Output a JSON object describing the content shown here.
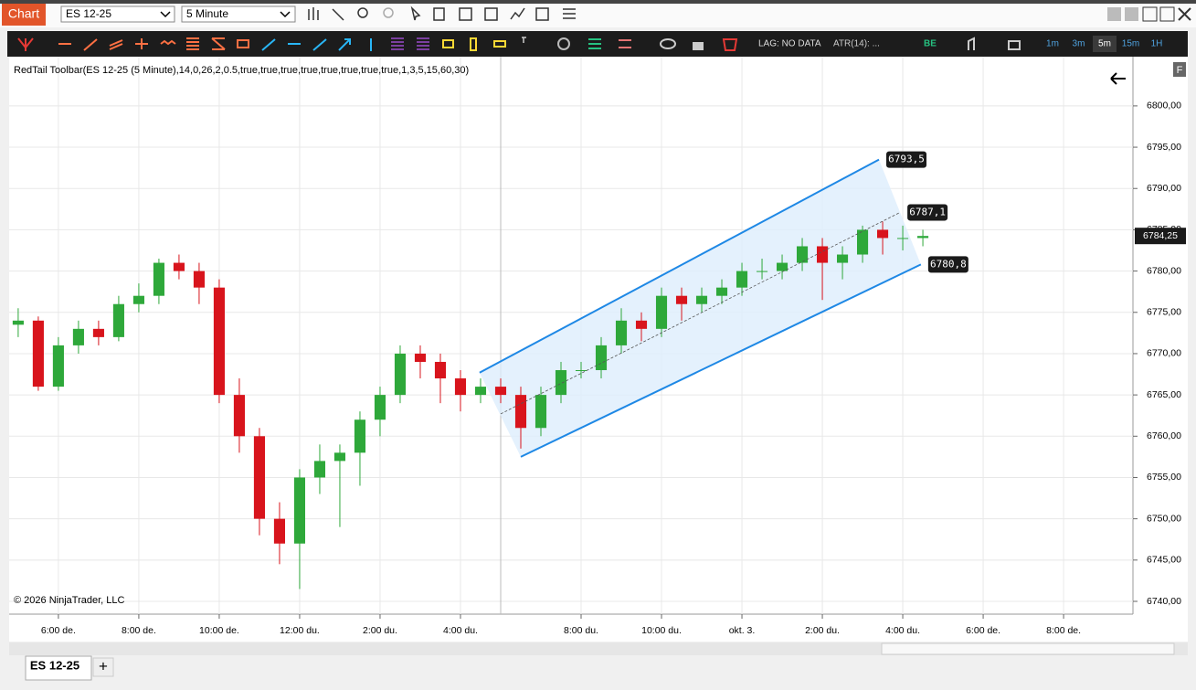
{
  "ui": {
    "window_tab": "Chart",
    "instrument": "ES 12-25",
    "interval": "5 Minute",
    "lag": "LAG: NO DATA",
    "atr": "ATR(14): ...",
    "be": "BE",
    "timeframes": [
      "1m",
      "3m",
      "5m",
      "15m",
      "1H"
    ],
    "indicator": "RedTail Toolbar(ES 12-25 (5 Minute),14,0,26,2,0.5,true,true,true,true,true,true,true,true,1,3,5,15,60,30)",
    "copyright": "© 2026 NinjaTrader, LLC",
    "f_button": "F",
    "bottom_tab": "ES 12-25",
    "add_tab": "+"
  },
  "chart_data": {
    "type": "candlestick",
    "up_color": "#2ea83a",
    "down_color": "#d8141c",
    "grid": true,
    "xlim": [
      -14.7,
      320.7
    ],
    "xticks": [
      {
        "value": 0,
        "label": "6:00 de."
      },
      {
        "value": 24,
        "label": "8:00 de."
      },
      {
        "value": 48,
        "label": "10:00 de."
      },
      {
        "value": 72,
        "label": "12:00 du."
      },
      {
        "value": 96,
        "label": "2:00 du."
      },
      {
        "value": 120,
        "label": "4:00 du."
      },
      {
        "value": 156,
        "label": "8:00 du."
      },
      {
        "value": 180,
        "label": "10:00 du."
      },
      {
        "value": 204,
        "label": "okt. 3."
      },
      {
        "value": 228,
        "label": "2:00 du."
      },
      {
        "value": 252,
        "label": "4:00 du."
      },
      {
        "value": 276,
        "label": "6:00 de."
      },
      {
        "value": 300,
        "label": "8:00 de."
      }
    ],
    "ylim": [
      6738.45,
      6805.3
    ],
    "yticks": [
      {
        "value": 6740,
        "label": "6740,00"
      },
      {
        "value": 6745,
        "label": "6745,00"
      },
      {
        "value": 6750,
        "label": "6750,00"
      },
      {
        "value": 6755,
        "label": "6755,00"
      },
      {
        "value": 6760,
        "label": "6760,00"
      },
      {
        "value": 6765,
        "label": "6765,00"
      },
      {
        "value": 6770,
        "label": "6770,00"
      },
      {
        "value": 6775,
        "label": "6775,00"
      },
      {
        "value": 6780,
        "label": "6780,00"
      },
      {
        "value": 6785,
        "label": "6785,00"
      },
      {
        "value": 6790,
        "label": "6790,00"
      },
      {
        "value": 6795,
        "label": "6795,00"
      },
      {
        "value": 6800,
        "label": "6800,00"
      }
    ],
    "x": [
      -12,
      -6,
      0,
      6,
      12,
      18,
      24,
      30,
      36,
      42,
      48,
      54,
      60,
      66,
      72,
      78,
      84,
      90,
      96,
      102,
      108,
      114,
      120,
      126,
      132,
      138,
      144,
      150,
      156,
      162,
      168,
      174,
      180,
      186,
      192,
      198,
      204,
      210,
      216,
      222,
      228,
      234,
      240,
      246,
      252,
      258
    ],
    "open": [
      6773.5,
      6774,
      6766,
      6771,
      6773,
      6772,
      6776,
      6777,
      6781,
      6780,
      6778,
      6765,
      6760,
      6750,
      6747,
      6755,
      6757,
      6758,
      6762,
      6765,
      6770,
      6769,
      6767,
      6765,
      6766,
      6765,
      6761,
      6765,
      6768,
      6768,
      6771,
      6774,
      6773,
      6777,
      6776,
      6777,
      6778,
      6780,
      6780,
      6781,
      6783,
      6781,
      6782,
      6785,
      6784,
      6784
    ],
    "high": [
      6775.5,
      6774.5,
      6772,
      6774,
      6774,
      6777,
      6778.5,
      6781.5,
      6782,
      6781,
      6779,
      6767,
      6761,
      6752,
      6756,
      6759,
      6759,
      6763,
      6766,
      6771,
      6771,
      6770,
      6768,
      6767,
      6767,
      6766,
      6766,
      6769,
      6769,
      6772,
      6775.5,
      6775,
      6778,
      6778,
      6778,
      6779,
      6781,
      6781.5,
      6782,
      6784,
      6784,
      6783,
      6785.5,
      6786,
      6785.5,
      6785
    ],
    "low": [
      6772,
      6765.5,
      6765.5,
      6770,
      6771,
      6771.5,
      6775,
      6776,
      6779,
      6776,
      6764,
      6758,
      6748,
      6744.5,
      6741.5,
      6753,
      6749,
      6754,
      6760,
      6764,
      6767,
      6764,
      6763,
      6764,
      6764,
      6758.5,
      6760,
      6764,
      6767,
      6767,
      6770,
      6771.5,
      6772,
      6774,
      6775,
      6776,
      6777,
      6779,
      6779,
      6780,
      6776.5,
      6779,
      6781,
      6782,
      6782.5,
      6783
    ],
    "close": [
      6774,
      6766,
      6771,
      6773,
      6772,
      6776,
      6777,
      6781,
      6780,
      6778,
      6765,
      6760,
      6750,
      6747,
      6755,
      6757,
      6758,
      6762,
      6765,
      6770,
      6769,
      6767,
      6765,
      6766,
      6765,
      6761,
      6765,
      6768,
      6768,
      6771,
      6774,
      6773,
      6777,
      6776,
      6777,
      6778,
      6780,
      6780,
      6781,
      6783,
      6781,
      6782,
      6785,
      6784,
      6784,
      6784.25
    ],
    "last_price": {
      "value": 6784.25,
      "label": "6784,25"
    },
    "channel": {
      "color": "#1e88e5",
      "fill": "#ddeefc",
      "upper": {
        "x": [
          125.7,
          244.9
        ],
        "values": [
          6767.7,
          6793.5
        ],
        "end_label": "6793,5"
      },
      "middle": {
        "x": [
          132,
          251.2
        ],
        "values": [
          6762.7,
          6787.1
        ],
        "end_label": "6787,1"
      },
      "lower": {
        "x": [
          138,
          257.4
        ],
        "values": [
          6757.5,
          6780.8
        ],
        "end_label": "6780,8"
      }
    }
  }
}
